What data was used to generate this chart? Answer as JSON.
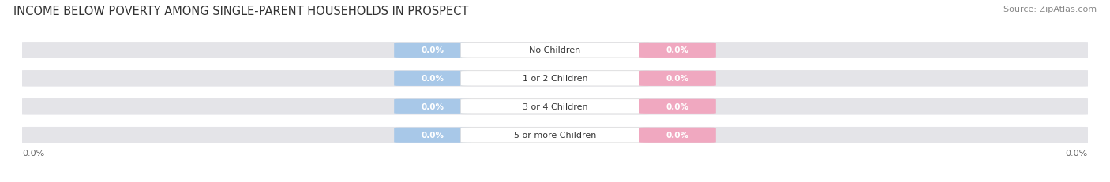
{
  "title": "INCOME BELOW POVERTY AMONG SINGLE-PARENT HOUSEHOLDS IN PROSPECT",
  "source": "Source: ZipAtlas.com",
  "categories": [
    "No Children",
    "1 or 2 Children",
    "3 or 4 Children",
    "5 or more Children"
  ],
  "single_father_values": [
    0.0,
    0.0,
    0.0,
    0.0
  ],
  "single_mother_values": [
    0.0,
    0.0,
    0.0,
    0.0
  ],
  "father_color": "#a8c8e8",
  "mother_color": "#f0a8c0",
  "bar_bg_color": "#e4e4e8",
  "bar_bg_edge_color": "#ffffff",
  "label_bg_color": "#ffffff",
  "title_fontsize": 10.5,
  "source_fontsize": 8,
  "value_fontsize": 7.5,
  "category_fontsize": 8,
  "legend_fontsize": 8.5,
  "axis_label": "0.0%",
  "axis_label_fontsize": 8,
  "background_color": "#ffffff",
  "bar_height": 0.62
}
